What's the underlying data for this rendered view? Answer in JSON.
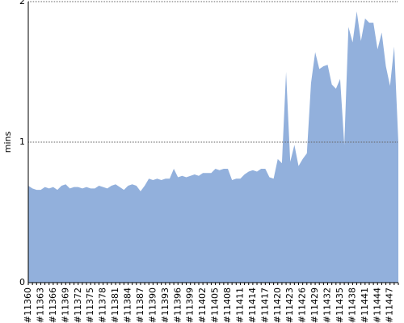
{
  "chart_data": {
    "type": "area",
    "y_label": "mins",
    "color": "#92b0dc",
    "categories": [
      "#11360",
      null,
      null,
      "#11363",
      null,
      null,
      "#11366",
      null,
      null,
      "#11369",
      null,
      null,
      "#11372",
      null,
      null,
      "#11375",
      null,
      null,
      "#11378",
      null,
      null,
      "#11381",
      null,
      null,
      "#11384",
      null,
      null,
      "#11387",
      null,
      null,
      "#11390",
      null,
      null,
      "#11393",
      null,
      null,
      "#11396",
      null,
      null,
      "#11399",
      null,
      null,
      "#11402",
      null,
      null,
      "#11405",
      null,
      null,
      "#11408",
      null,
      null,
      "#11411",
      null,
      null,
      "#11414",
      null,
      null,
      "#11417",
      null,
      null,
      "#11420",
      null,
      null,
      "#11423",
      null,
      null,
      "#11426",
      null,
      null,
      "#11429",
      null,
      null,
      "#11432",
      null,
      null,
      "#11435",
      null,
      null,
      "#11438",
      null,
      null,
      "#11441",
      null,
      null,
      "#11444",
      null,
      null,
      "#11447",
      null,
      null
    ],
    "values": [
      0.69,
      0.67,
      0.66,
      0.66,
      0.68,
      0.67,
      0.68,
      0.66,
      0.69,
      0.7,
      0.67,
      0.68,
      0.68,
      0.67,
      0.68,
      0.67,
      0.67,
      0.69,
      0.68,
      0.67,
      0.69,
      0.7,
      0.68,
      0.66,
      0.69,
      0.7,
      0.69,
      0.65,
      0.69,
      0.74,
      0.73,
      0.74,
      0.73,
      0.74,
      0.74,
      0.81,
      0.75,
      0.76,
      0.75,
      0.76,
      0.77,
      0.76,
      0.78,
      0.78,
      0.78,
      0.81,
      0.8,
      0.81,
      0.81,
      0.73,
      0.74,
      0.74,
      0.77,
      0.79,
      0.8,
      0.79,
      0.81,
      0.81,
      0.75,
      0.74,
      0.88,
      0.85,
      1.5,
      0.86,
      0.98,
      0.83,
      0.88,
      0.92,
      1.42,
      1.64,
      1.52,
      1.54,
      1.55,
      1.41,
      1.38,
      1.45,
      0.98,
      1.82,
      1.71,
      1.93,
      1.72,
      1.88,
      1.85,
      1.85,
      1.66,
      1.78,
      1.54,
      1.4,
      1.68,
      1.0
    ],
    "ylim": [
      0,
      2
    ],
    "yticks": [
      0,
      1,
      2
    ],
    "grid": true
  }
}
